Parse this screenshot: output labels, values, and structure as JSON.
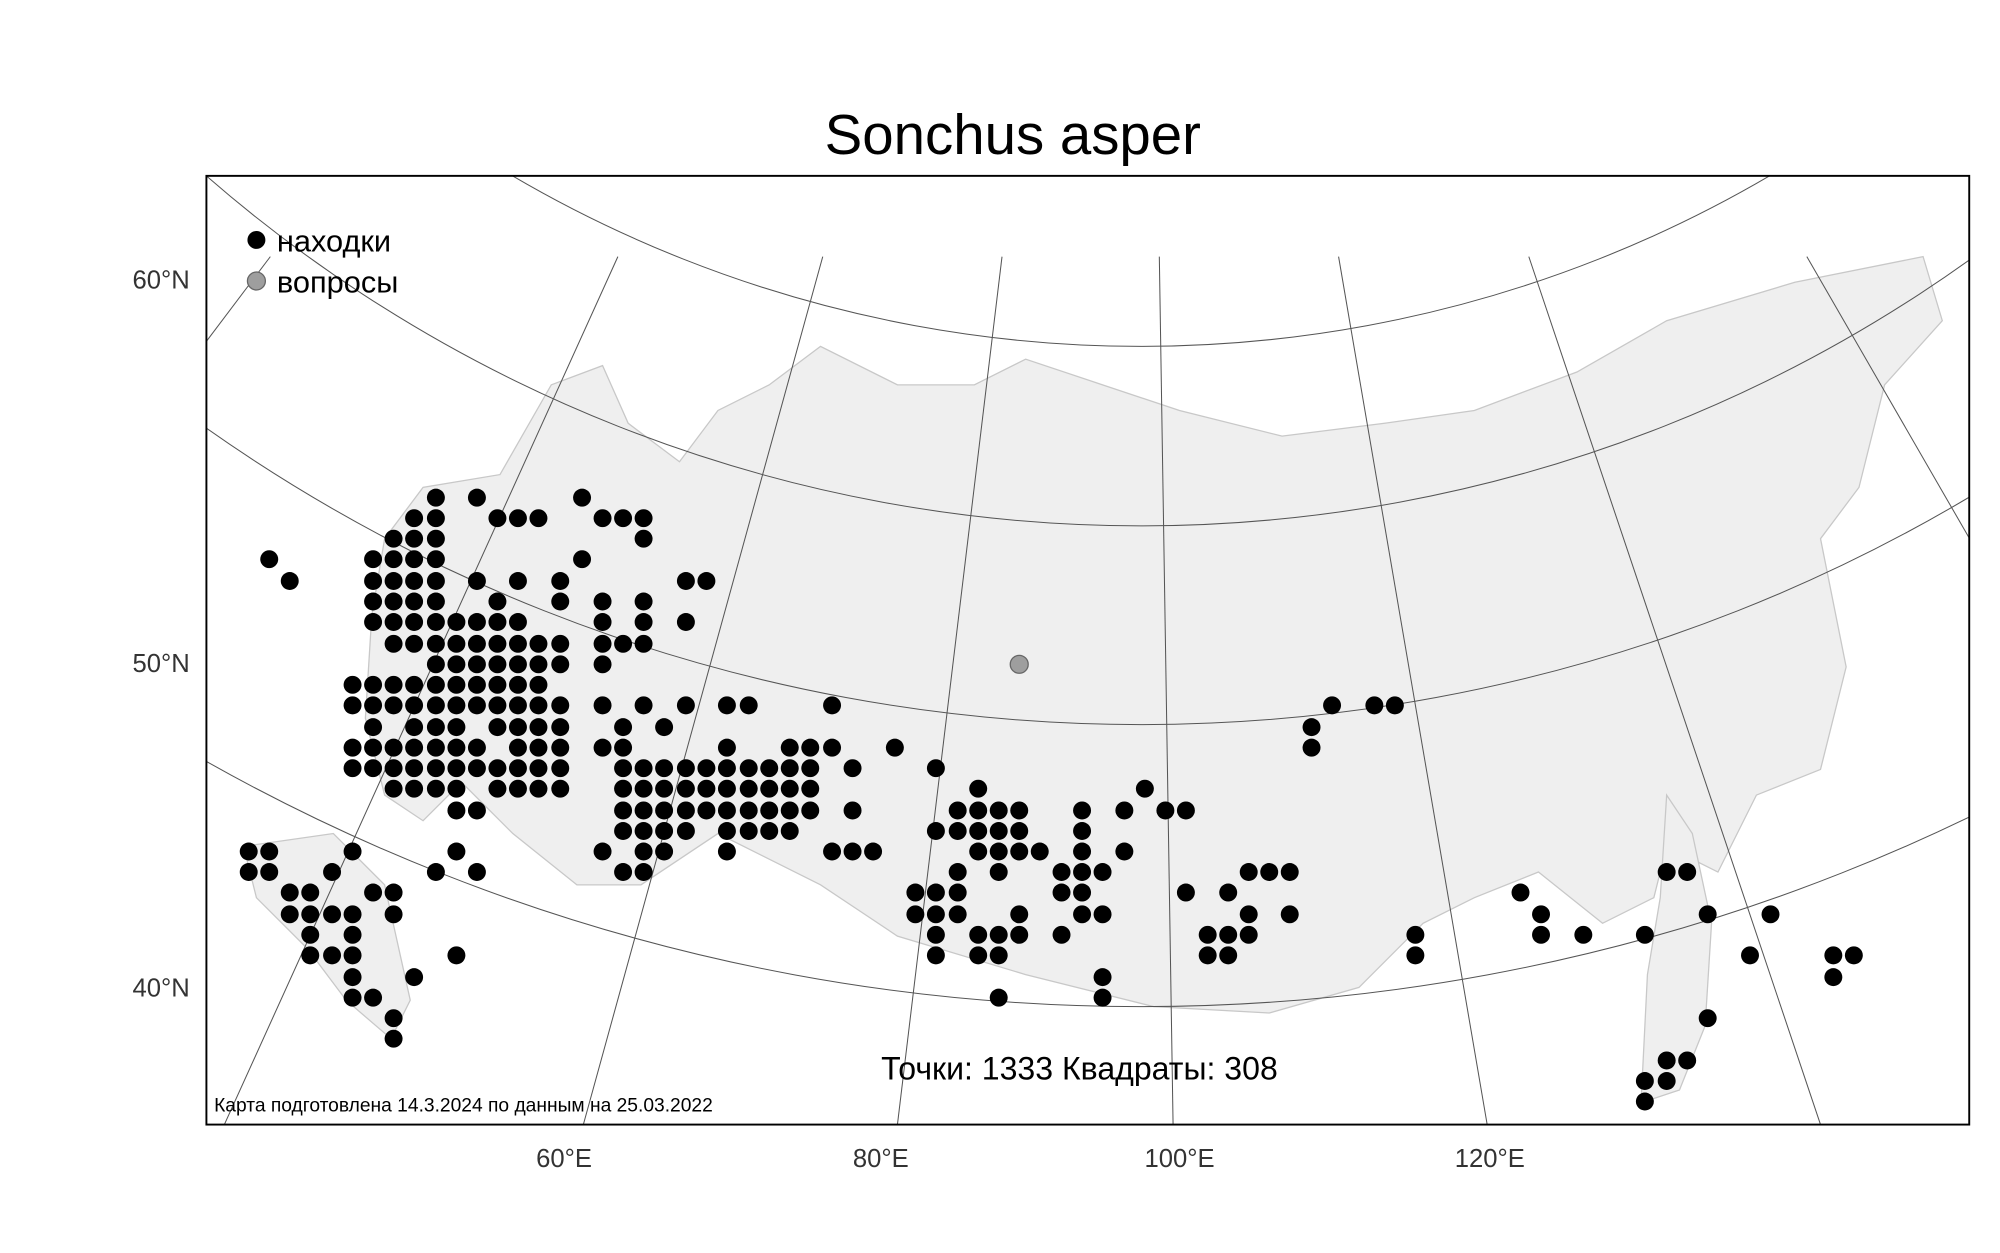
{
  "title": "Sonchus asper",
  "legend": [
    {
      "label": "находки",
      "color": "#000000"
    },
    {
      "label": "вопросы",
      "color": "#9e9e9e"
    }
  ],
  "lat_labels": [
    "60°N",
    "50°N",
    "40°N"
  ],
  "lon_labels": [
    "60°E",
    "80°E",
    "100°E",
    "120°E"
  ],
  "stats": "Точки: 1333 Квадраты: 308",
  "footer": "Карта подготовлена 14.3.2024 по данным на 25.03.2022",
  "colors": {
    "land": "#efefef",
    "border": "#c8c8c8",
    "find": "#000000",
    "question": "#9e9e9e"
  }
}
